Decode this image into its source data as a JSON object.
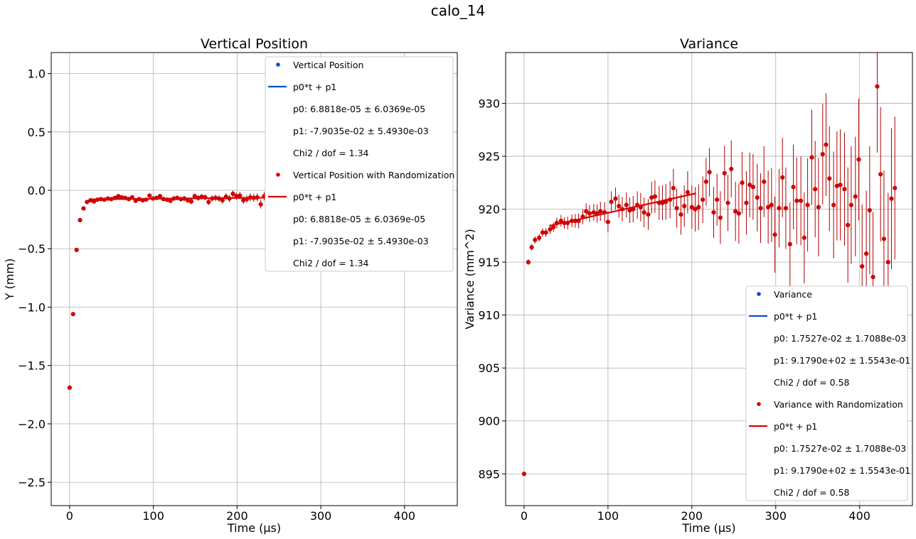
{
  "figure_title": "calo_14",
  "colors": {
    "blue": "#0a4ec7",
    "red": "#d90000",
    "dark_red": "#b00000",
    "grid": "#b0b0b0"
  },
  "chart_data": [
    {
      "type": "scatter",
      "title": "Vertical Position",
      "xlabel": "Time (µs)",
      "ylabel": "Y (mm)",
      "xlim": [
        -22,
        463
      ],
      "ylim": [
        -2.7,
        1.18
      ],
      "xticks": [
        0,
        100,
        200,
        300,
        400
      ],
      "xtick_labels": [
        "0",
        "100",
        "200",
        "300",
        "400"
      ],
      "yticks": [
        1.0,
        0.5,
        0.0,
        -0.5,
        -1.0,
        -1.5,
        -2.0,
        -2.5
      ],
      "ytick_labels": [
        "1.0",
        "0.5",
        "0.0",
        "−0.5",
        "−1.0",
        "−1.5",
        "−2.0",
        "−2.5"
      ],
      "grid": true,
      "legend_position": "top-right",
      "series": [
        {
          "name": "Vertical Position with Randomization",
          "kind": "points",
          "x": [
            0,
            4.15,
            8.3,
            12.45,
            16.6,
            20.75,
            24.9,
            29.05,
            33.2,
            37.35,
            41.5,
            45.65,
            49.8,
            53.95,
            58.1,
            62.25,
            66.4,
            70.55,
            74.7,
            78.85,
            83.0,
            87.15,
            91.3,
            95.45,
            99.6,
            103.75,
            107.9,
            112.05,
            116.2,
            120.35,
            124.5,
            128.65,
            132.8,
            136.95,
            141.1,
            145.25,
            149.4,
            153.55,
            157.7,
            161.85,
            166.0,
            170.15,
            174.3,
            178.45,
            182.6,
            186.75,
            190.9,
            195.05,
            199.2,
            203.35,
            207.5,
            211.65,
            215.8,
            219.95,
            224.1,
            228.25,
            232.4
          ],
          "y": [
            -1.69,
            -1.06,
            -0.51,
            -0.255,
            -0.155,
            -0.1,
            -0.085,
            -0.095,
            -0.08,
            -0.075,
            -0.08,
            -0.07,
            -0.075,
            -0.065,
            -0.05,
            -0.06,
            -0.065,
            -0.075,
            -0.06,
            -0.09,
            -0.075,
            -0.085,
            -0.08,
            -0.045,
            -0.07,
            -0.065,
            -0.05,
            -0.075,
            -0.08,
            -0.09,
            -0.07,
            -0.065,
            -0.075,
            -0.07,
            -0.085,
            -0.095,
            -0.05,
            -0.065,
            -0.055,
            -0.06,
            -0.1,
            -0.07,
            -0.065,
            -0.07,
            -0.085,
            -0.055,
            -0.07,
            -0.03,
            -0.05,
            -0.045,
            -0.085,
            -0.075,
            -0.06,
            -0.065,
            -0.06,
            -0.12,
            -0.05
          ],
          "yerr": [
            0.006,
            0.006,
            0.006,
            0.007,
            0.007,
            0.008,
            0.008,
            0.009,
            0.009,
            0.01,
            0.01,
            0.011,
            0.011,
            0.012,
            0.012,
            0.013,
            0.013,
            0.014,
            0.014,
            0.015,
            0.015,
            0.016,
            0.016,
            0.017,
            0.017,
            0.018,
            0.018,
            0.019,
            0.019,
            0.02,
            0.02,
            0.021,
            0.021,
            0.022,
            0.022,
            0.023,
            0.023,
            0.024,
            0.024,
            0.025,
            0.026,
            0.026,
            0.027,
            0.028,
            0.028,
            0.029,
            0.03,
            0.03,
            0.031,
            0.032,
            0.032,
            0.033,
            0.034,
            0.034,
            0.035,
            0.036,
            0.036
          ]
        },
        {
          "name": "p0*t + p1",
          "kind": "line",
          "x": [
            25,
            240
          ],
          "y": [
            -0.0773,
            -0.0625
          ]
        }
      ],
      "legend": [
        {
          "label": "Vertical Position",
          "marker": "dot",
          "color": "#0a4ec7"
        },
        {
          "label": "p0*t + p1",
          "marker": "line",
          "color": "#0a4ec7"
        },
        {
          "label": "p0: 6.8818e-05 ± 6.0369e-05",
          "marker": "none"
        },
        {
          "label": "p1: -7.9035e-02 ± 5.4930e-03",
          "marker": "none"
        },
        {
          "label": "Chi2 / dof = 1.34",
          "marker": "none"
        },
        {
          "label": "Vertical Position with Randomization",
          "marker": "dot",
          "color": "#d90000"
        },
        {
          "label": "p0*t + p1",
          "marker": "line",
          "color": "#d90000"
        },
        {
          "label": "p0: 6.8818e-05 ± 6.0369e-05",
          "marker": "none"
        },
        {
          "label": "p1: -7.9035e-02 ± 5.4930e-03",
          "marker": "none"
        },
        {
          "label": "Chi2 / dof = 1.34",
          "marker": "none"
        }
      ]
    },
    {
      "type": "scatter",
      "title": "Variance",
      "xlabel": "Time (µs)",
      "ylabel": "Variance (mm^2)",
      "xlim": [
        -22,
        463
      ],
      "ylim": [
        892,
        934.8
      ],
      "xticks": [
        0,
        100,
        200,
        300,
        400
      ],
      "xtick_labels": [
        "0",
        "100",
        "200",
        "300",
        "400"
      ],
      "yticks": [
        930,
        925,
        920,
        915,
        910,
        905,
        900,
        895
      ],
      "ytick_labels": [
        "930",
        "925",
        "920",
        "915",
        "910",
        "905",
        "900",
        "895"
      ],
      "grid": true,
      "legend_position": "lower-right",
      "series": [
        {
          "name": "Variance with Randomization",
          "kind": "points",
          "x": [
            0,
            5,
            9,
            13,
            18,
            22,
            26,
            31,
            35,
            39,
            44,
            48,
            52,
            57,
            61,
            65,
            70,
            74,
            78,
            83,
            87,
            91,
            96,
            100,
            104,
            109,
            113,
            117,
            122,
            126,
            130,
            135,
            139,
            143,
            148,
            152,
            156,
            161,
            165,
            169,
            174,
            178,
            182,
            187,
            191,
            195,
            200,
            204,
            208,
            213,
            217,
            221,
            226,
            230,
            234,
            239,
            243,
            247,
            252,
            256,
            260,
            265,
            269,
            273,
            278,
            282,
            286,
            291,
            295,
            299,
            304,
            308,
            312,
            317,
            321,
            325,
            330,
            334,
            338,
            343,
            347,
            351,
            356,
            360,
            364,
            369,
            373,
            377,
            382,
            386,
            390,
            395,
            399,
            403,
            408,
            412,
            416,
            421,
            425,
            429,
            434,
            438,
            442
          ],
          "y": [
            895.0,
            915.0,
            916.4,
            917.1,
            917.3,
            917.8,
            917.8,
            918.1,
            918.3,
            918.7,
            918.9,
            918.7,
            918.7,
            918.9,
            918.9,
            918.9,
            919.3,
            919.8,
            919.6,
            919.7,
            919.6,
            919.8,
            919.7,
            918.8,
            920.7,
            921.0,
            920.3,
            920.0,
            920.4,
            919.9,
            920.0,
            920.4,
            920.2,
            919.7,
            919.5,
            921.1,
            921.2,
            920.6,
            920.6,
            920.7,
            920.9,
            922.0,
            920.1,
            919.5,
            920.3,
            921.6,
            920.2,
            920.0,
            920.2,
            920.9,
            922.6,
            923.5,
            919.7,
            920.9,
            919.2,
            923.4,
            920.6,
            923.8,
            919.8,
            919.6,
            922.5,
            920.6,
            922.3,
            922.1,
            921.1,
            920.1,
            922.6,
            920.2,
            920.4,
            917.6,
            920.1,
            923.0,
            920.1,
            916.7,
            922.1,
            920.8,
            920.8,
            917.3,
            920.4,
            924.9,
            921.9,
            920.2,
            925.2,
            926.1,
            922.9,
            920.4,
            922.2,
            922.3,
            921.9,
            918.5,
            920.4,
            921.2,
            924.7,
            914.6,
            915.8,
            919.9,
            913.6,
            931.6,
            923.3,
            917.2,
            915.0,
            921.0,
            922.0
          ],
          "yerr": [
            0.15,
            0.25,
            0.3,
            0.35,
            0.35,
            0.4,
            0.4,
            0.45,
            0.45,
            0.5,
            0.55,
            0.55,
            0.6,
            0.6,
            0.65,
            0.7,
            0.7,
            0.75,
            0.8,
            0.8,
            0.85,
            0.9,
            0.95,
            1.0,
            1.0,
            1.05,
            1.1,
            1.15,
            1.2,
            1.2,
            1.25,
            1.3,
            1.35,
            1.4,
            1.45,
            1.5,
            1.55,
            1.6,
            1.65,
            1.7,
            1.75,
            1.8,
            1.85,
            1.9,
            1.95,
            2.0,
            2.05,
            2.1,
            2.15,
            2.2,
            2.25,
            2.3,
            2.4,
            2.45,
            2.5,
            2.6,
            2.65,
            2.7,
            2.8,
            2.85,
            2.9,
            3.0,
            3.05,
            3.1,
            3.2,
            3.3,
            3.35,
            3.45,
            3.5,
            3.6,
            3.7,
            3.75,
            3.85,
            3.95,
            4.0,
            4.1,
            4.2,
            4.3,
            4.4,
            4.5,
            4.55,
            4.65,
            4.75,
            4.85,
            4.95,
            5.05,
            5.15,
            5.25,
            5.35,
            5.45,
            5.55,
            5.65,
            5.75,
            5.85,
            5.95,
            6.05,
            6.15,
            6.25,
            6.35,
            6.45,
            6.55,
            6.65,
            6.75
          ]
        },
        {
          "name": "p0*t + p1",
          "kind": "line",
          "x": [
            30,
            205
          ],
          "y": [
            918.43,
            921.5
          ]
        }
      ],
      "legend": [
        {
          "label": "Variance",
          "marker": "dot",
          "color": "#0a4ec7"
        },
        {
          "label": "p0*t + p1",
          "marker": "line",
          "color": "#0a4ec7"
        },
        {
          "label": "p0: 1.7527e-02 ± 1.7088e-03",
          "marker": "none"
        },
        {
          "label": "p1: 9.1790e+02 ± 1.5543e-01",
          "marker": "none"
        },
        {
          "label": "Chi2 / dof = 0.58",
          "marker": "none"
        },
        {
          "label": "Variance with Randomization",
          "marker": "dot",
          "color": "#d90000"
        },
        {
          "label": "p0*t + p1",
          "marker": "line",
          "color": "#d90000"
        },
        {
          "label": "p0: 1.7527e-02 ± 1.7088e-03",
          "marker": "none"
        },
        {
          "label": "p1: 9.1790e+02 ± 1.5543e-01",
          "marker": "none"
        },
        {
          "label": "Chi2 / dof = 0.58",
          "marker": "none"
        }
      ]
    }
  ]
}
